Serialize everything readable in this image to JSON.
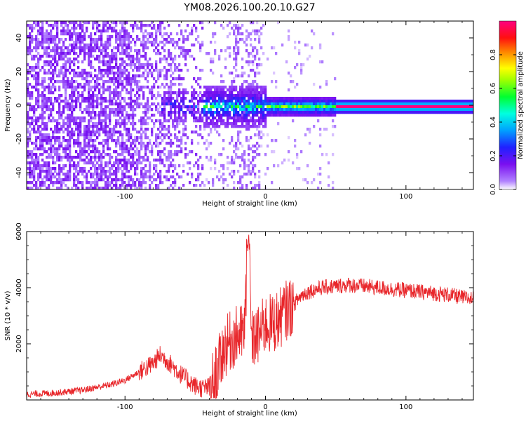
{
  "title": "YM08.2026.100.20.10.G27",
  "colors": {
    "snr_line": "#e8262a",
    "spectrogram_low": "#dcc8f5",
    "spectrogram_high": "#e0148c"
  },
  "chart_data": [
    {
      "type": "heatmap",
      "name": "spectrogram",
      "xlabel": "Height of straight line (km)",
      "ylabel": "Frequency (Hz)",
      "xlim": [
        -170,
        148
      ],
      "ylim": [
        -50,
        50
      ],
      "xticks": [
        -100,
        0,
        100
      ],
      "xtick_labels": [
        "-100",
        "0",
        "100"
      ],
      "yticks": [
        -40,
        -20,
        0,
        20,
        40
      ],
      "ytick_labels": [
        "-40",
        "-20",
        "0",
        "20",
        "40"
      ],
      "colorbar": {
        "label": "Normalized spectral amplitude",
        "range": [
          0,
          1
        ],
        "colormap": "rainbow (white-violet-blue-cyan-green-yellow-red-magenta)",
        "ticks": [
          0.0,
          0.2,
          0.4,
          0.6,
          0.8
        ],
        "tick_labels": [
          "0.0",
          "0.2",
          "0.4",
          "0.6",
          "0.8"
        ]
      },
      "description_values": {
        "noise_region_x": [
          -170,
          -40
        ],
        "noise_amplitude": 0.08,
        "transition_region_x": [
          -70,
          50
        ],
        "transition_peak_amplitude": 0.45,
        "tone_region_x": [
          50,
          140
        ],
        "tone_frequency_hz": 0,
        "tone_amplitude": 1.0
      },
      "grid": false
    },
    {
      "type": "line",
      "name": "snr",
      "xlabel": "Height of straight line (km)",
      "ylabel": "SNR (10 * v/v)",
      "xlim": [
        -170,
        148
      ],
      "ylim": [
        0,
        6000
      ],
      "xticks": [
        -100,
        0,
        100
      ],
      "xtick_labels": [
        "-100",
        "0",
        "100"
      ],
      "yticks": [
        2000,
        4000,
        6000
      ],
      "ytick_labels": [
        "2000",
        "4000",
        "6000"
      ],
      "series": [
        {
          "x": [
            -170,
            -150,
            -130,
            -110,
            -100,
            -90,
            -80,
            -75,
            -70,
            -60,
            -50,
            -45,
            -40,
            -35,
            -30,
            -25,
            -20,
            -15,
            -12,
            -10,
            -5,
            0,
            5,
            10,
            15,
            20,
            25,
            30,
            40,
            50,
            60,
            70,
            80,
            90,
            100,
            110,
            120,
            130,
            140,
            148
          ],
          "y": [
            200,
            250,
            350,
            550,
            700,
            1000,
            1300,
            1600,
            1400,
            900,
            500,
            420,
            450,
            900,
            1800,
            2100,
            2300,
            2400,
            6000,
            2100,
            2300,
            2700,
            2700,
            2900,
            3200,
            3400,
            3700,
            3850,
            4000,
            4050,
            4100,
            4050,
            4000,
            3950,
            3900,
            3850,
            3800,
            3750,
            3650,
            3600
          ]
        }
      ],
      "grid": false
    }
  ]
}
